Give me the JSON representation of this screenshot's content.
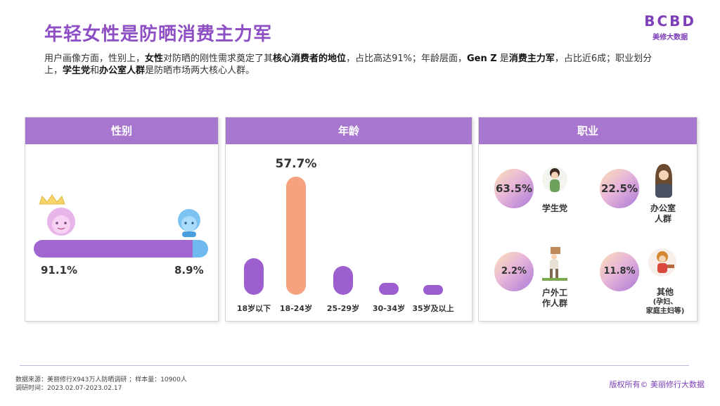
{
  "title": "年轻女性是防晒消费主力军",
  "logo": {
    "mark": "BCBD",
    "sub": "美修大数据"
  },
  "intro": [
    {
      "t": "用户画像方面，性别上，",
      "b": false
    },
    {
      "t": "女性",
      "b": true
    },
    {
      "t": "对防晒的刚性需求奠定了其",
      "b": false
    },
    {
      "t": "核心消费者的地位",
      "b": true
    },
    {
      "t": "，占比高达91%；年龄层面，",
      "b": false
    },
    {
      "t": "Gen Z",
      "b": true
    },
    {
      "t": " 是",
      "b": false
    },
    {
      "t": "消费主力军",
      "b": true
    },
    {
      "t": "，占比近6成；职业划分上，",
      "b": false
    },
    {
      "t": "学生党",
      "b": true
    },
    {
      "t": "和",
      "b": false
    },
    {
      "t": "办公室人群",
      "b": true
    },
    {
      "t": "是防晒市场两大核心人群。",
      "b": false
    }
  ],
  "colors": {
    "purple": "#a166d0",
    "orange": "#f6a27f",
    "blue": "#6fb9f0",
    "header": "#a777cf"
  },
  "chart_data": [
    {
      "type": "bar",
      "title": "性别",
      "categories": [
        "female",
        "male"
      ],
      "values": [
        91.1,
        8.9
      ],
      "value_labels": [
        "91.1%",
        "8.9%"
      ],
      "icons": [
        "crowned-girl-icon",
        "boy-icon"
      ]
    },
    {
      "type": "bar",
      "title": "年龄",
      "categories": [
        "18岁以下",
        "18-24岁",
        "25-29岁",
        "30-34岁",
        "35岁及以上"
      ],
      "values": [
        18,
        57.7,
        14,
        6,
        4
      ],
      "value_labels": [
        "",
        "57.7%",
        "",
        "",
        ""
      ],
      "ylim": [
        0,
        60
      ],
      "highlight": "18-24岁"
    },
    {
      "type": "table",
      "title": "职业",
      "items": [
        {
          "value": "63.5%",
          "label": [
            "学生党"
          ],
          "icon": "student-icon"
        },
        {
          "value": "22.5%",
          "label": [
            "办公室",
            "人群"
          ],
          "icon": "office-woman-icon"
        },
        {
          "value": "2.2%",
          "label": [
            "户外工",
            "作人群"
          ],
          "icon": "outdoor-worker-icon"
        },
        {
          "value": "11.8%",
          "label": [
            "其他"
          ],
          "sublabel": [
            "(孕妇、",
            "家庭主妇等)"
          ],
          "icon": "other-woman-icon"
        }
      ]
    }
  ],
  "footer": {
    "source": "数据来源：美丽修行X943万人防晒调研 ；样本量：10900人",
    "date": "调研时间：2023.02.07-2023.02.17",
    "copyright": "版权所有© 美丽修行大数据"
  }
}
